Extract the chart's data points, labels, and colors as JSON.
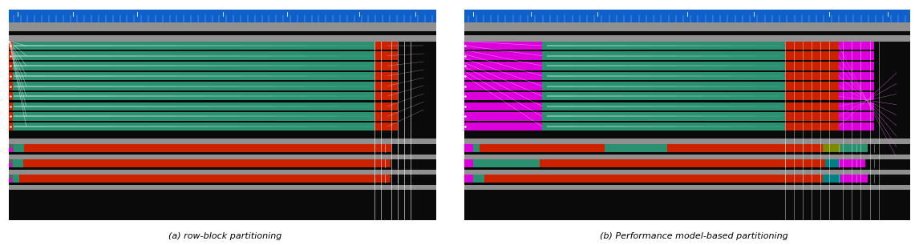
{
  "fig_width": 11.46,
  "fig_height": 3.06,
  "bg_color": "#ffffff",
  "subtitle_a": "(a) row-block partitioning",
  "subtitle_b": "(b) Performance model-based partitioning",
  "subtitle_fontsize": 8,
  "green": "#2a9070",
  "red": "#cc2200",
  "magenta": "#dd00dd",
  "gray": "#909090",
  "darkgray": "#606060",
  "black": "#0a0a0a",
  "blue": "#1060cc",
  "olive": "#7a8a00",
  "teal": "#008080"
}
